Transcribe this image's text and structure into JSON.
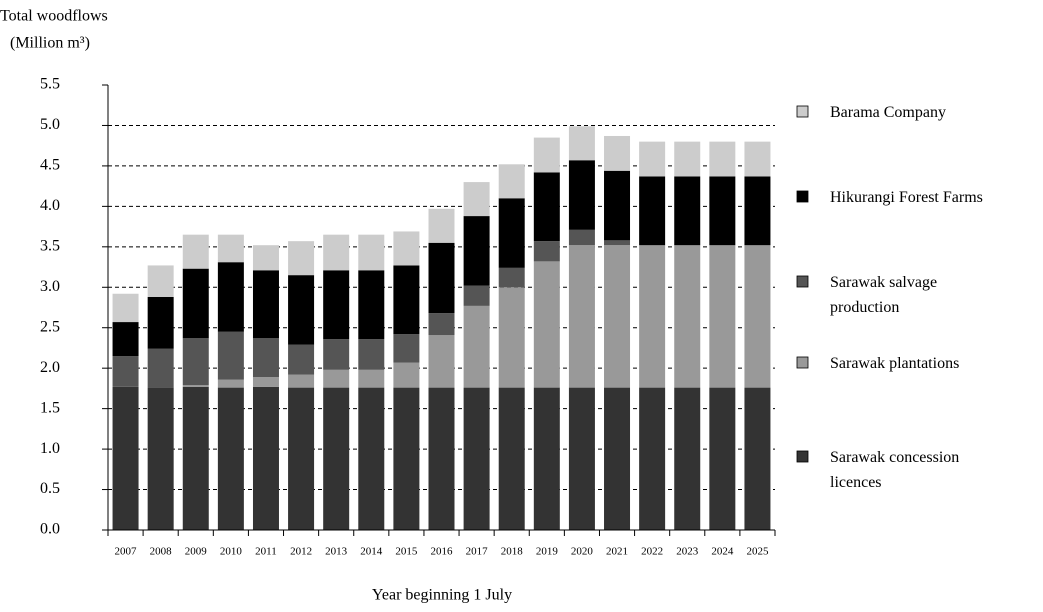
{
  "chart_data": {
    "type": "stacked-bar",
    "title": "Total woodflows",
    "y_label": "(Million m³)",
    "x_label": "Year beginning 1 July",
    "categories": [
      "2007",
      "2008",
      "2009",
      "2010",
      "2011",
      "2012",
      "2013",
      "2014",
      "2015",
      "2016",
      "2017",
      "2018",
      "2019",
      "2020",
      "2021",
      "2022",
      "2023",
      "2024",
      "2025"
    ],
    "series": [
      {
        "name": "Sarawak concession licences",
        "color": "#333333",
        "values": [
          1.77,
          1.76,
          1.77,
          1.76,
          1.77,
          1.76,
          1.76,
          1.76,
          1.76,
          1.76,
          1.76,
          1.76,
          1.76,
          1.76,
          1.76,
          1.76,
          1.76,
          1.76,
          1.76
        ]
      },
      {
        "name": "Sarawak plantations",
        "color": "#999999",
        "values": [
          0,
          0,
          0.02,
          0.1,
          0.12,
          0.16,
          0.22,
          0.22,
          0.31,
          0.65,
          1.01,
          1.24,
          1.56,
          1.76,
          1.76,
          1.76,
          1.76,
          1.76,
          1.76
        ]
      },
      {
        "name": "Sarawak salvage production",
        "color": "#555555",
        "values": [
          0.38,
          0.48,
          0.58,
          0.59,
          0.48,
          0.37,
          0.38,
          0.38,
          0.35,
          0.27,
          0.25,
          0.24,
          0.25,
          0.19,
          0.06,
          0,
          0,
          0,
          0
        ]
      },
      {
        "name": "Hikurangi Forest Farms",
        "color": "#000000",
        "values": [
          0.42,
          0.64,
          0.86,
          0.86,
          0.84,
          0.86,
          0.85,
          0.85,
          0.85,
          0.87,
          0.86,
          0.86,
          0.85,
          0.86,
          0.86,
          0.85,
          0.85,
          0.85,
          0.85
        ]
      },
      {
        "name": "Barama Company",
        "color": "#cccccc",
        "values": [
          0.35,
          0.39,
          0.42,
          0.34,
          0.31,
          0.42,
          0.44,
          0.44,
          0.42,
          0.42,
          0.42,
          0.42,
          0.43,
          0.42,
          0.43,
          0.43,
          0.43,
          0.43,
          0.43
        ]
      }
    ],
    "ylim": [
      0,
      5.5
    ],
    "yticks": [
      {
        "value": 0,
        "label": "0.0"
      },
      0.5,
      {
        "value": 1,
        "label": "1.0"
      },
      1.5,
      {
        "value": 2,
        "label": "2.0"
      },
      2.5,
      {
        "value": 3,
        "label": "3.0"
      },
      3.5,
      {
        "value": 4,
        "label": "4.0"
      },
      4.5,
      {
        "value": 5,
        "label": "5.0"
      },
      5.5
    ],
    "grid": true
  }
}
